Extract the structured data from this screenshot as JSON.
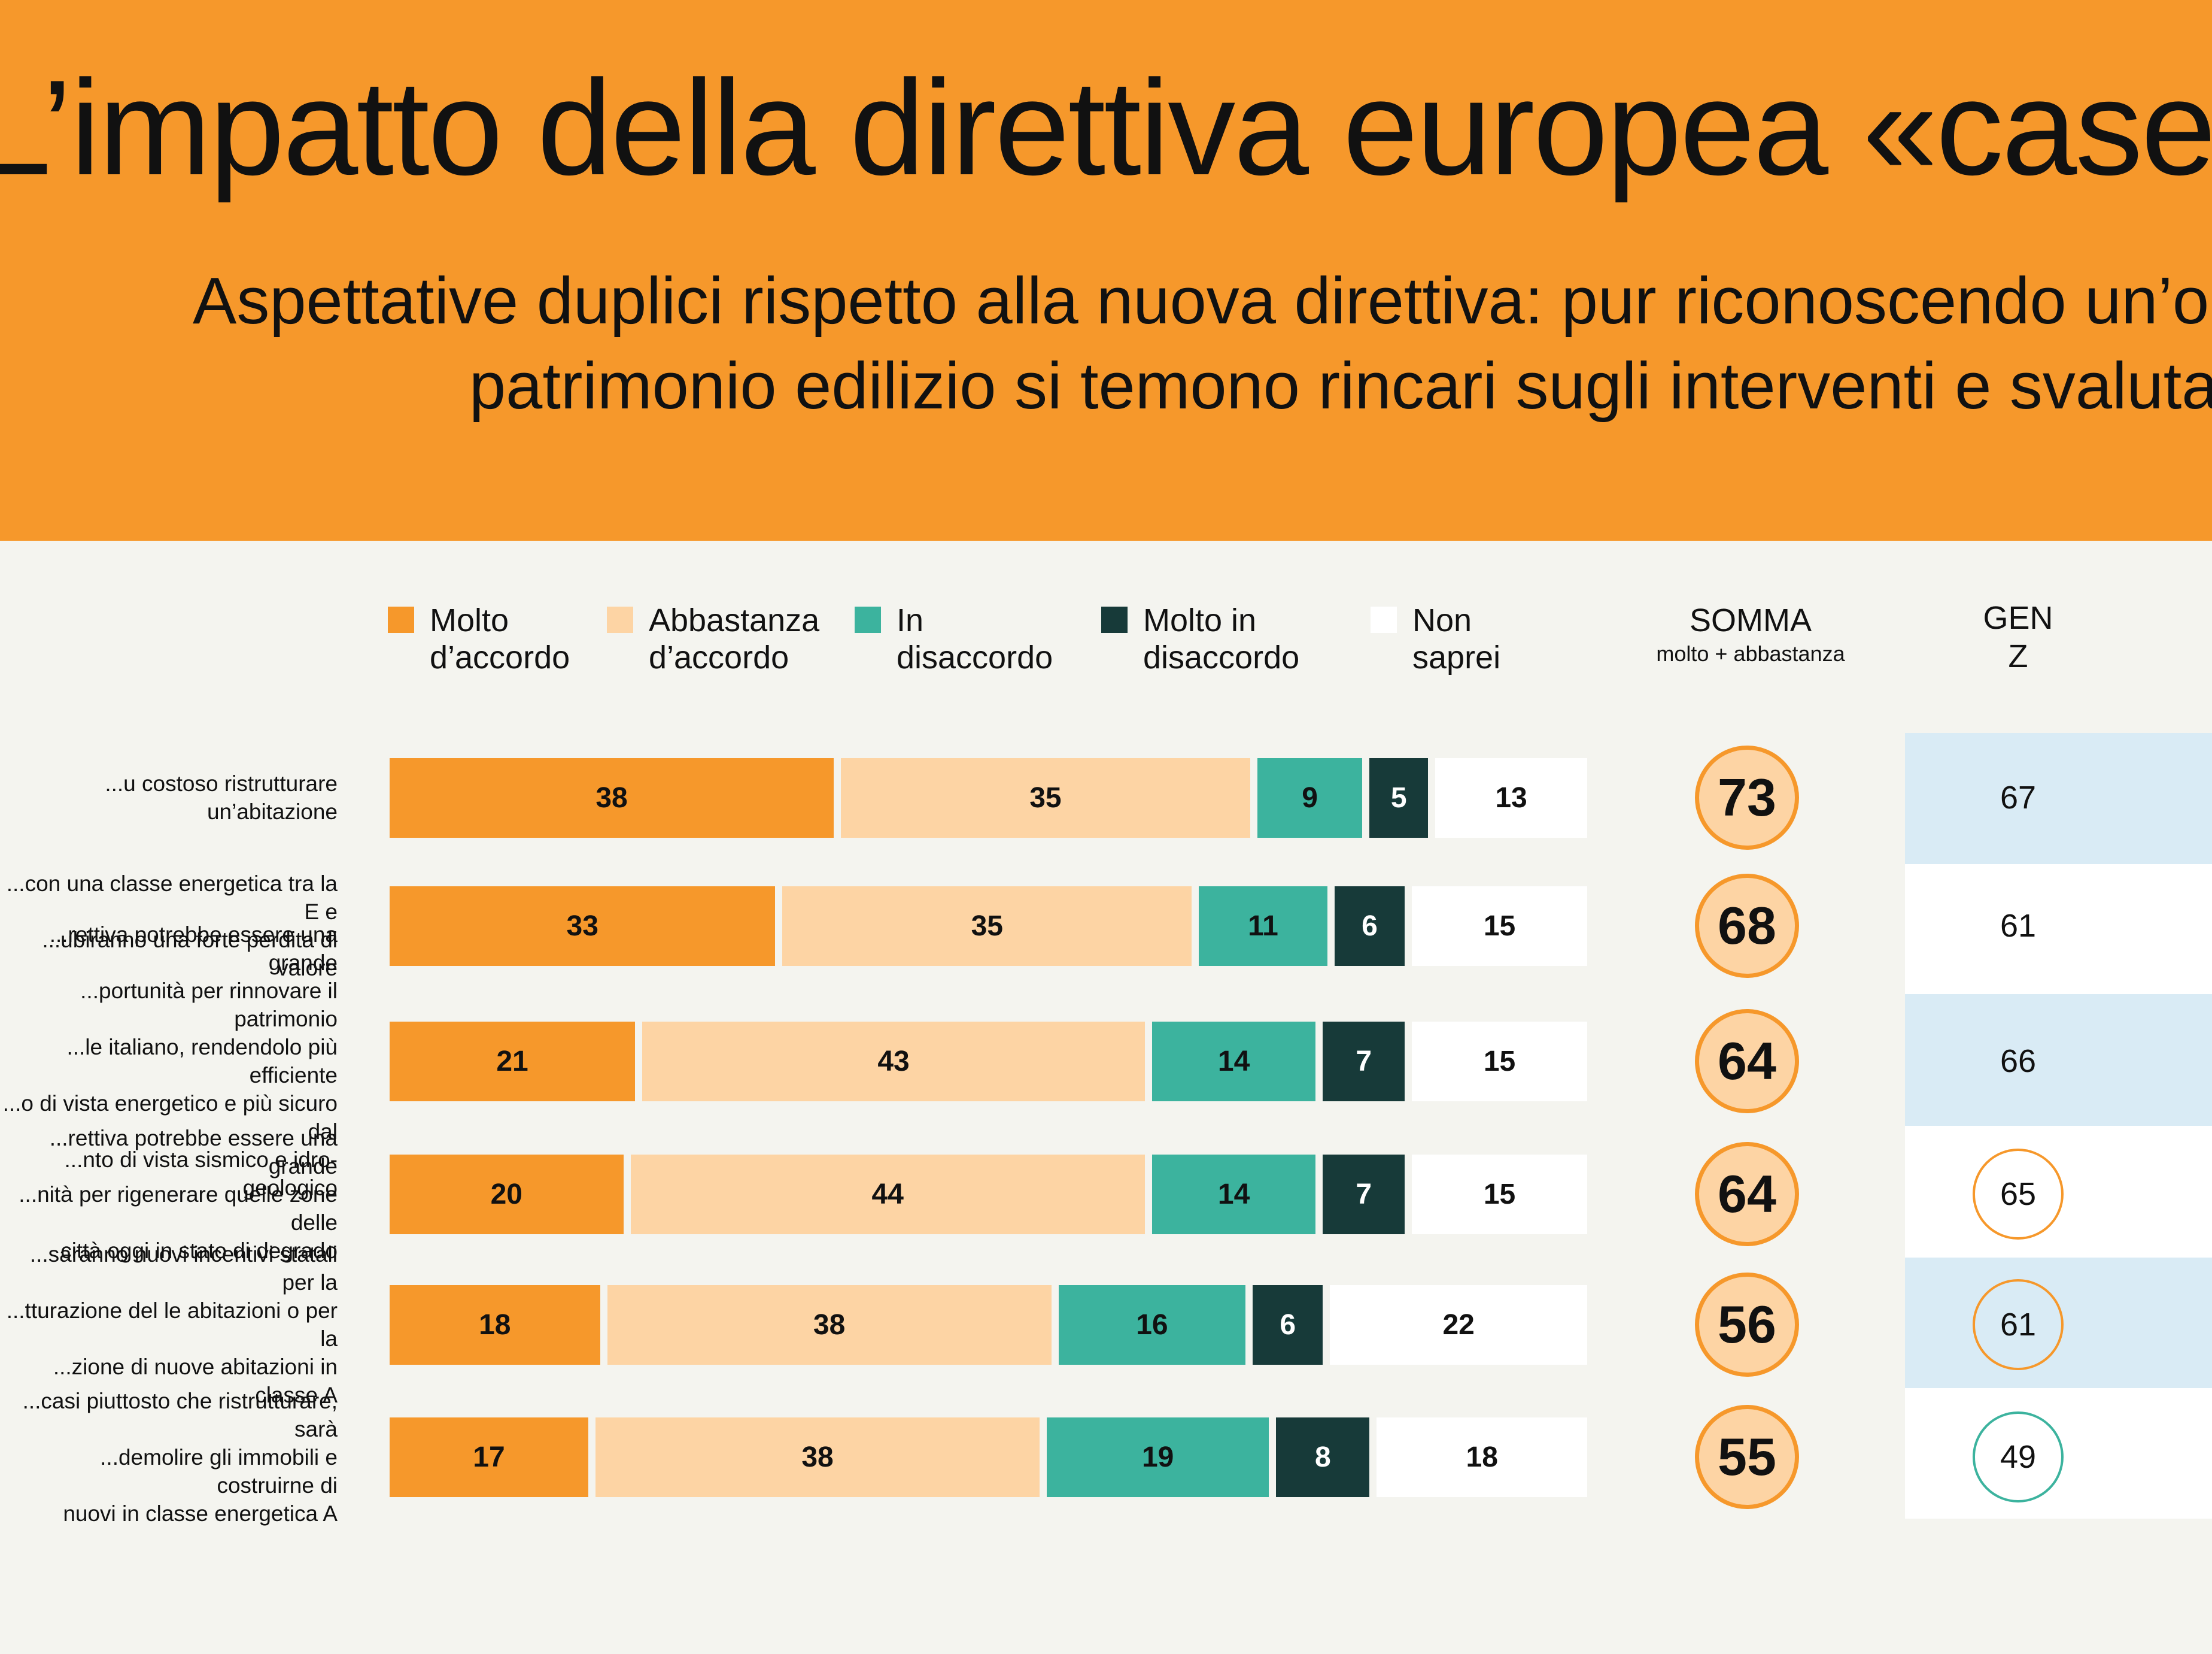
{
  "header": {
    "title": "L’impatto della direttiva europea «case green»",
    "subtitle_line1": "Aspettative duplici rispetto alla nuova direttiva: pur riconoscendo un’opportunità per il",
    "subtitle_line2": "patrimonio edilizio si temono rincari sugli interventi e svalutazioni degli immobili"
  },
  "colors": {
    "header_background": "#f6982b",
    "page_background": "#f4f4ef",
    "molto_accordo": "#f6982b",
    "abbastanza_accordo": "#fdd4a4",
    "in_disaccordo": "#3cb39e",
    "molto_disaccordo": "#173a39",
    "non_saprei": "#ffffff",
    "genz_highlight": "#d9ebf5"
  },
  "legend": [
    {
      "label": "Molto\nd’accordo",
      "color": "#f6982b"
    },
    {
      "label": "Abbastanza\nd’accordo",
      "color": "#fdd4a4"
    },
    {
      "label": "In\ndisaccordo",
      "color": "#3cb39e"
    },
    {
      "label": "Molto in\ndisaccordo",
      "color": "#173a39"
    },
    {
      "label": "Non\nsaprei",
      "color": "#ffffff"
    }
  ],
  "columns": {
    "somma_title": "SOMMA",
    "somma_subtitle": "molto + abbastanza",
    "genz_title": "GEN\nZ"
  },
  "chart_data": {
    "type": "bar",
    "orientation": "horizontal",
    "stacked": true,
    "title": "L’impatto della direttiva europea «case green»",
    "categories": [
      "...u costoso ristrutturare un’abitazione",
      "...con una classe energetica tra la E e\n...ubiranno una forte perdita di valore",
      "...rettiva potrebbe essere una grande\n...portunità per rinnovare il patrimonio\n...le italiano, rendendolo più efficiente\n...o di vista energetico e più sicuro dal\n...nto di vista sismico e idro-geologico",
      "...rettiva potrebbe essere una grande\n...nità per rigenerare quelle zone delle\ncittà oggi in stato di degrado",
      "...saranno nuovi incentivi statali per la\n...tturazione del le abitazioni o per la\n...zione di nuove abitazioni in classe A",
      "...casi piuttosto che ristrutturare, sarà\n...demolire gli immobili e costruirne di\nnuovi in classe energetica A"
    ],
    "series": [
      {
        "name": "Molto d’accordo",
        "values": [
          38,
          33,
          21,
          20,
          18,
          17
        ]
      },
      {
        "name": "Abbastanza d’accordo",
        "values": [
          35,
          35,
          43,
          44,
          38,
          38
        ]
      },
      {
        "name": "In disaccordo",
        "values": [
          9,
          11,
          14,
          14,
          16,
          19
        ]
      },
      {
        "name": "Molto in disaccordo",
        "values": [
          5,
          6,
          7,
          7,
          6,
          8
        ]
      },
      {
        "name": "Non saprei",
        "values": [
          13,
          15,
          15,
          15,
          22,
          18
        ]
      }
    ],
    "somma": [
      73,
      68,
      64,
      64,
      56,
      55
    ],
    "genz": [
      {
        "value": 67,
        "highlight": true,
        "circle": "none"
      },
      {
        "value": 61,
        "highlight": false,
        "circle": "none"
      },
      {
        "value": 66,
        "highlight": true,
        "circle": "none"
      },
      {
        "value": 65,
        "highlight": false,
        "circle": "orange"
      },
      {
        "value": 61,
        "highlight": true,
        "circle": "orange"
      },
      {
        "value": 49,
        "highlight": false,
        "circle": "teal"
      }
    ],
    "xlim": [
      0,
      100
    ],
    "legend_position": "top",
    "grid": false
  }
}
